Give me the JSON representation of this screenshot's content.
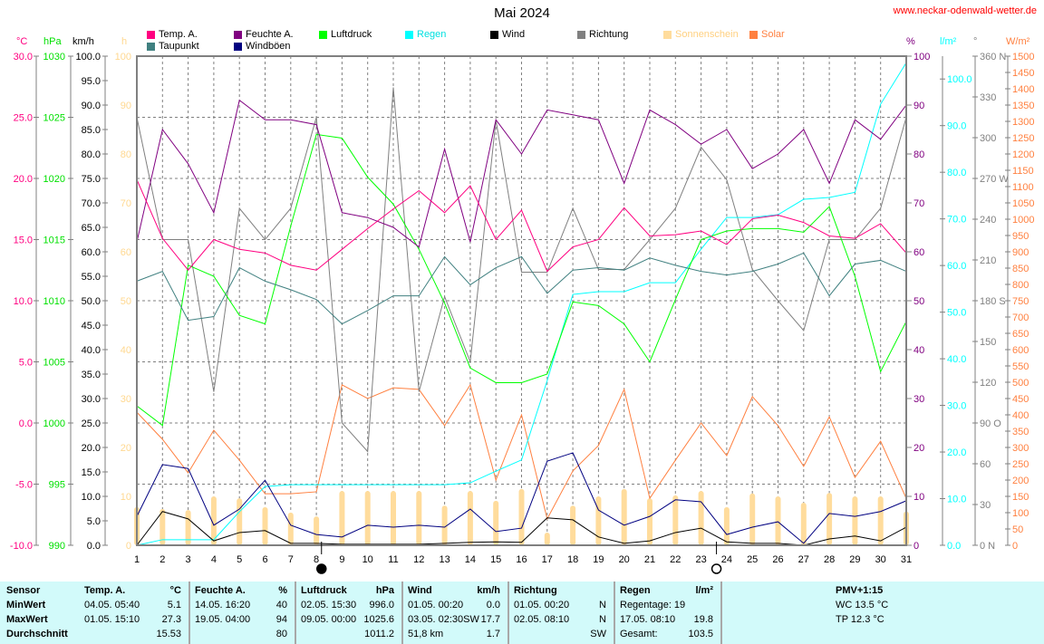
{
  "header": {
    "title": "Mai 2024",
    "site": "www.neckar-odenwald-wetter.de"
  },
  "legend": [
    {
      "label": "Temp. A.",
      "color": "#ff0080",
      "text": "#000"
    },
    {
      "label": "Taupunkt",
      "color": "#408080",
      "text": "#000"
    },
    {
      "label": "Feuchte A.",
      "color": "#800080",
      "text": "#000"
    },
    {
      "label": "Windböen",
      "color": "#000080",
      "text": "#000"
    },
    {
      "label": "Luftdruck",
      "color": "#00ff00",
      "text": "#000"
    },
    {
      "label": "Regen",
      "color": "#00ffff",
      "text": "#00e0e0"
    },
    {
      "label": "Wind",
      "color": "#000000",
      "text": "#000"
    },
    {
      "label": "Richtung",
      "color": "#808080",
      "text": "#000"
    },
    {
      "label": "Sonnenschein",
      "color": "#ffdc9c",
      "text": "#ffd080"
    },
    {
      "label": "Solar",
      "color": "#ff8040",
      "text": "#ff8040"
    }
  ],
  "chart_data": {
    "type": "line",
    "title": "Mai 2024",
    "x": [
      1,
      2,
      3,
      4,
      5,
      6,
      7,
      8,
      9,
      10,
      11,
      12,
      13,
      14,
      15,
      16,
      17,
      18,
      19,
      20,
      21,
      22,
      23,
      24,
      25,
      26,
      27,
      28,
      29,
      30,
      31
    ],
    "axes": {
      "temp": {
        "unit": "°C",
        "min": -10,
        "max": 30,
        "step": 5,
        "color": "#ff0080",
        "decimals": 1
      },
      "press": {
        "unit": "hPa",
        "min": 990,
        "max": 1030,
        "step": 5,
        "color": "#00e000",
        "decimals": 0
      },
      "wind": {
        "unit": "km/h",
        "min": 0,
        "max": 100,
        "step": 5,
        "color": "#000000",
        "decimals": 1
      },
      "sun": {
        "unit": "h",
        "min": 0,
        "max": 100,
        "step": 10,
        "color": "#ffd890",
        "decimals": 0
      },
      "hum": {
        "unit": "%",
        "min": 0,
        "max": 100,
        "step": 10,
        "color": "#800080",
        "decimals": 0
      },
      "rain": {
        "unit": "l/m²",
        "min": 0,
        "max": 104.9,
        "step": 10,
        "color": "#00ffff",
        "decimals": 1
      },
      "dir": {
        "unit": "°",
        "min": 0,
        "max": 360,
        "step": 30,
        "color": "#808080",
        "decimals": 0,
        "compass": {
          "0": "N",
          "90": "O",
          "180": "S",
          "270": "W",
          "360": "N"
        }
      },
      "solar": {
        "unit": "W/m²",
        "min": 0,
        "max": 1500,
        "step": 50,
        "color": "#ff8040",
        "decimals": 0
      }
    },
    "series": [
      {
        "name": "Sonnenschein",
        "axis": "sun",
        "kind": "bar",
        "color": "#ffdc9c",
        "values": [
          7.8,
          7.4,
          7.2,
          10,
          9.6,
          7.8,
          6.7,
          5.9,
          11.1,
          11.1,
          11.1,
          11.1,
          8.1,
          11.1,
          9.1,
          11.5,
          2.6,
          8.1,
          10,
          11.5,
          9.6,
          10.2,
          11.1,
          7.8,
          10.6,
          10,
          8.7,
          10.7,
          10,
          10,
          6.9
        ]
      },
      {
        "name": "Solar",
        "axis": "solar",
        "color": "#ff8040",
        "values": [
          408,
          325,
          222,
          353,
          261,
          158,
          158,
          164,
          492,
          450,
          483,
          478,
          367,
          492,
          200,
          400,
          81,
          228,
          306,
          478,
          144,
          261,
          375,
          275,
          456,
          367,
          242,
          394,
          208,
          319,
          144
        ]
      },
      {
        "name": "Richtung",
        "axis": "dir",
        "color": "#808080",
        "values": [
          315,
          225,
          225,
          113,
          248,
          225,
          248,
          315,
          90,
          69,
          337,
          113,
          183,
          135,
          313,
          201,
          201,
          248,
          203,
          203,
          225,
          248,
          293,
          269,
          203,
          180,
          158,
          225,
          225,
          248,
          315
        ]
      },
      {
        "name": "Regen",
        "axis": "rain",
        "color": "#00ffff",
        "values": [
          0,
          1.2,
          1.2,
          1.2,
          7.2,
          12.6,
          13.0,
          13.0,
          13.0,
          13.0,
          13.0,
          13.0,
          13.0,
          13.4,
          15.9,
          18.3,
          35.3,
          53.8,
          54.4,
          54.4,
          56.3,
          56.3,
          63.5,
          70.3,
          70.3,
          70.9,
          74.2,
          74.6,
          75.7,
          94.6,
          103.5
        ]
      },
      {
        "name": "Luftdruck",
        "axis": "press",
        "color": "#00ff00",
        "values": [
          1001.4,
          999.8,
          1012.9,
          1012.0,
          1008.8,
          1008.1,
          1016.1,
          1023.6,
          1023.3,
          1020.1,
          1017.9,
          1014.2,
          1009.8,
          1004.5,
          1003.3,
          1003.3,
          1004.0,
          1009.9,
          1009.6,
          1008.1,
          1005.0,
          1010.1,
          1015.0,
          1015.7,
          1015.9,
          1015.9,
          1015.6,
          1017.7,
          1012.0,
          1004.2,
          1008.3
        ]
      },
      {
        "name": "Taupunkt",
        "axis": "temp",
        "color": "#408080",
        "values": [
          11.6,
          12.4,
          8.4,
          8.7,
          12.7,
          11.6,
          10.9,
          10.1,
          8.1,
          9.2,
          10.4,
          10.4,
          13.6,
          11.3,
          12.7,
          13.6,
          10.6,
          12.5,
          12.7,
          12.5,
          13.5,
          12.9,
          12.4,
          12.1,
          12.4,
          13.0,
          13.9,
          10.4,
          13.0,
          13.3,
          12.4
        ]
      },
      {
        "name": "Feuchte A.",
        "axis": "hum",
        "color": "#800080",
        "values": [
          62,
          85,
          78,
          68,
          91,
          87,
          87,
          86,
          68,
          67,
          65,
          61,
          81,
          62,
          87,
          80,
          89,
          88,
          87,
          74,
          89,
          86,
          82,
          85,
          77,
          80,
          85,
          74,
          87,
          83,
          90
        ]
      },
      {
        "name": "Temp. A.",
        "axis": "temp",
        "color": "#ff0080",
        "values": [
          19.9,
          15.1,
          12.5,
          15.0,
          14.2,
          13.9,
          12.9,
          12.5,
          14.2,
          15.9,
          17.5,
          19.0,
          17.2,
          19.4,
          15.0,
          17.4,
          12.4,
          14.4,
          15.0,
          17.6,
          15.3,
          15.4,
          15.7,
          14.6,
          16.7,
          17.0,
          16.4,
          15.3,
          15.1,
          16.3,
          13.9
        ]
      },
      {
        "name": "Windböen",
        "axis": "wind",
        "color": "#000080",
        "values": [
          5.9,
          16.5,
          15.7,
          4.1,
          7.4,
          13.3,
          4.1,
          2.2,
          1.7,
          4.1,
          3.7,
          4.1,
          3.7,
          7.4,
          2.8,
          3.5,
          17.2,
          18.9,
          7.2,
          4.1,
          5.9,
          9.3,
          8.9,
          2.2,
          3.7,
          4.8,
          0.4,
          6.5,
          5.9,
          6.9,
          9.1
        ]
      },
      {
        "name": "Wind",
        "axis": "wind",
        "color": "#000000",
        "values": [
          0,
          6.9,
          5.4,
          0.9,
          2.6,
          3.0,
          0.4,
          0.4,
          0.2,
          0.2,
          0.2,
          0.2,
          0.4,
          0.6,
          0.7,
          0.6,
          5.6,
          5.2,
          1.7,
          0.4,
          0.9,
          2.6,
          3.5,
          0.7,
          0.4,
          0.4,
          0,
          1.3,
          1.9,
          0.9,
          3.7
        ]
      }
    ],
    "moon_phases": [
      {
        "day": 8.2,
        "phase": "new"
      },
      {
        "day": 23.6,
        "phase": "full"
      }
    ],
    "grid": true
  },
  "table": {
    "sensor": {
      "header": "Sensor",
      "rows": [
        "MinWert",
        "MaxWert",
        "Durchschnitt"
      ]
    },
    "temp": {
      "header": "Temp. A.",
      "unit": "°C",
      "rows": [
        [
          "04.05.  05:40",
          "5.1"
        ],
        [
          "01.05.  15:10",
          "27.3"
        ],
        [
          "",
          "15.53"
        ]
      ]
    },
    "hum": {
      "header": "Feuchte A.",
      "unit": "%",
      "rows": [
        [
          "14.05.  16:20",
          "40"
        ],
        [
          "19.05.  04:00",
          "94"
        ],
        [
          "",
          "80"
        ]
      ]
    },
    "press": {
      "header": "Luftdruck",
      "unit": "hPa",
      "rows": [
        [
          "02.05.  15:30",
          "996.0"
        ],
        [
          "09.05.  00:00",
          "1025.6"
        ],
        [
          "",
          "1011.2"
        ]
      ]
    },
    "wind": {
      "header": "Wind",
      "unit": "km/h",
      "rows": [
        [
          "01.05.  00:20",
          "0.0"
        ],
        [
          "03.05.  02:30SW",
          "17.7"
        ],
        [
          "51,8 km",
          "1.7"
        ]
      ]
    },
    "dir": {
      "header": "Richtung",
      "unit": "",
      "rows": [
        [
          "01.05.  00:20",
          "N"
        ],
        [
          "02.05.  08:10",
          "N"
        ],
        [
          "",
          "SW"
        ]
      ]
    },
    "rain": {
      "header": "Regen",
      "unit": "l/m²",
      "rows": [
        [
          "Regentage: 19",
          ""
        ],
        [
          "17.05.  08:10",
          "19.8"
        ],
        [
          "Gesamt:",
          "103.5"
        ]
      ]
    },
    "pmv": {
      "header": "PMV+1:15",
      "rows": [
        "WC 13.5 °C",
        "TP 12.3 °C"
      ]
    }
  }
}
